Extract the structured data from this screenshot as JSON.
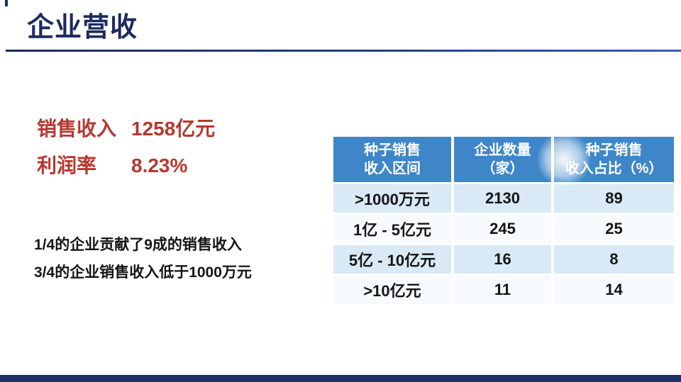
{
  "header": {
    "title": "企业营收"
  },
  "stats": {
    "color": "#b5382f",
    "items": [
      {
        "label": "销售收入",
        "value": "1258亿元"
      },
      {
        "label": "利润率",
        "value": "8.23%"
      }
    ]
  },
  "notes": {
    "lines": [
      "1/4的企业贡献了9成的销售收入",
      "3/4的企业销售收入低于1000万元"
    ]
  },
  "chart_data": {
    "type": "table",
    "columns": [
      "种子销售\n收入区间",
      "企业数量\n（家）",
      "种子销售\n收入占比（%）"
    ],
    "rows": [
      [
        ">1000万元",
        "2130",
        "89"
      ],
      [
        "1亿 - 5亿元",
        "245",
        "25"
      ],
      [
        "5亿 - 10亿元",
        "16",
        "8"
      ],
      [
        ">10亿元",
        "11",
        "14"
      ]
    ],
    "header_bg": "#3e86c8",
    "row_alt_bg": "#d9eaf6",
    "row_bg": "#f7fbfe"
  },
  "colors": {
    "accent_navy": "#1c2a5e",
    "footer_bar": "#1e3164"
  }
}
